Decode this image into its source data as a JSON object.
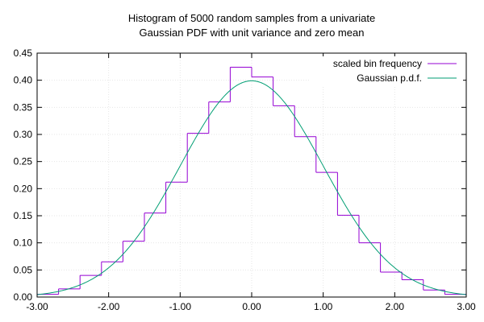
{
  "chart_data": {
    "type": "line",
    "title_lines": [
      "Histogram of 5000 random samples from a univariate",
      "Gaussian PDF with unit variance and zero mean"
    ],
    "xlabel": "",
    "ylabel": "",
    "xlim": [
      -3.0,
      3.0
    ],
    "ylim": [
      0.0,
      0.45
    ],
    "x_ticks": [
      "-3.00",
      "-2.00",
      "-1.00",
      "0.00",
      "1.00",
      "2.00",
      "3.00"
    ],
    "y_ticks": [
      "0.00",
      "0.05",
      "0.10",
      "0.15",
      "0.20",
      "0.25",
      "0.30",
      "0.35",
      "0.40",
      "0.45"
    ],
    "grid": true,
    "legend_position": "top-right",
    "series": [
      {
        "name": "scaled bin frequency",
        "kind": "histogram-steps",
        "color": "#9400d3",
        "bin_edges": [
          -3.0,
          -2.7,
          -2.4,
          -2.1,
          -1.8,
          -1.5,
          -1.2,
          -0.9,
          -0.6,
          -0.3,
          0.0,
          0.3,
          0.6,
          0.9,
          1.2,
          1.5,
          1.8,
          2.1,
          2.4,
          2.7,
          3.0
        ],
        "values": [
          0.005,
          0.015,
          0.04,
          0.065,
          0.103,
          0.155,
          0.212,
          0.302,
          0.36,
          0.424,
          0.406,
          0.353,
          0.296,
          0.23,
          0.151,
          0.1,
          0.046,
          0.032,
          0.013,
          0.005
        ]
      },
      {
        "name": "Gaussian p.d.f.",
        "kind": "function",
        "color": "#009e73",
        "function": "gaussian",
        "mean": 0,
        "sigma": 1
      }
    ]
  }
}
